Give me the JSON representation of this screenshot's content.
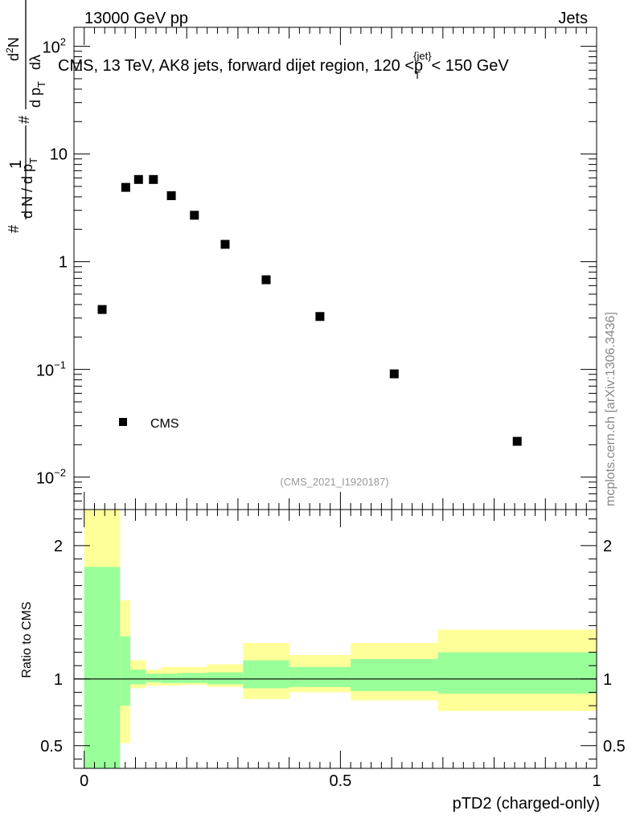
{
  "header": {
    "left": "13000 GeV pp",
    "right": "Jets"
  },
  "side_label": "mcplots.cern.ch [arXiv:1306.3436]",
  "watermark": "(CMS_2021_I1920187)",
  "chart_data": [
    {
      "type": "scatter",
      "panel": "main",
      "title_parts": {
        "main": "CMS, 13 TeV, AK8 jets, forward dijet region, 120 <",
        "pt_symbol": "p",
        "pt_sub": "T",
        "pt_sup": "{jet}",
        "suffix": "< 150 GeV"
      },
      "ylabel_parts": {
        "hash": "#",
        "one": "1",
        "dN": "d N / d p",
        "T": "T",
        "hash2": "#",
        "d2N": "d",
        "sup2": "2",
        "N": "N",
        "dpT": "d p",
        "dlambda": "dλ"
      },
      "yscale": "log",
      "ylim": [
        0.005,
        150
      ],
      "xlim": [
        -0.02,
        1.0
      ],
      "y_ticks": [
        {
          "value": 0.01,
          "base": "10",
          "exp": "−2"
        },
        {
          "value": 0.1,
          "base": "10",
          "exp": "−1"
        },
        {
          "value": 1,
          "label": "1"
        },
        {
          "value": 10,
          "label": "10"
        },
        {
          "value": 100,
          "base": "10",
          "exp": "2"
        }
      ],
      "legend": {
        "label": "CMS",
        "position": "lower-left"
      },
      "series": [
        {
          "name": "CMS",
          "marker": "square",
          "color": "#000000",
          "points": [
            {
              "x": 0.035,
              "y": 0.36
            },
            {
              "x": 0.081,
              "y": 4.9
            },
            {
              "x": 0.106,
              "y": 5.8
            },
            {
              "x": 0.135,
              "y": 5.8
            },
            {
              "x": 0.17,
              "y": 4.1
            },
            {
              "x": 0.215,
              "y": 2.7
            },
            {
              "x": 0.275,
              "y": 1.45
            },
            {
              "x": 0.355,
              "y": 0.68
            },
            {
              "x": 0.46,
              "y": 0.31
            },
            {
              "x": 0.605,
              "y": 0.091
            },
            {
              "x": 0.845,
              "y": 0.0215
            }
          ]
        }
      ]
    },
    {
      "type": "area",
      "panel": "ratio",
      "ylabel": "Ratio to CMS",
      "xlabel": "pTD2 (charged-only)",
      "xlim": [
        -0.02,
        1.0
      ],
      "ylim": [
        0.33,
        2.27
      ],
      "x_ticks": [
        {
          "value": 0,
          "label": "0"
        },
        {
          "value": 0.5,
          "label": "0.5"
        },
        {
          "value": 1,
          "label": "1"
        }
      ],
      "y_ticks": [
        {
          "value": 0.5,
          "label": "0.5"
        },
        {
          "value": 1,
          "label": "1"
        },
        {
          "value": 2,
          "label": "2"
        }
      ],
      "reference_line": 1,
      "colors": {
        "outer": "#ffff99",
        "inner": "#99ff99",
        "line": "#000000"
      },
      "bands": [
        {
          "x0": 0.0,
          "x1": 0.07,
          "outer": [
            0.0,
            2.5
          ],
          "inner": [
            0.0,
            1.84
          ]
        },
        {
          "x0": 0.07,
          "x1": 0.09,
          "outer": [
            0.52,
            1.59
          ],
          "inner": [
            0.8,
            1.32
          ]
        },
        {
          "x0": 0.09,
          "x1": 0.12,
          "outer": [
            0.93,
            1.14
          ],
          "inner": [
            0.96,
            1.07
          ]
        },
        {
          "x0": 0.12,
          "x1": 0.15,
          "outer": [
            0.95,
            1.07
          ],
          "inner": [
            0.975,
            1.04
          ]
        },
        {
          "x0": 0.15,
          "x1": 0.19,
          "outer": [
            0.95,
            1.09
          ],
          "inner": [
            0.97,
            1.04
          ]
        },
        {
          "x0": 0.19,
          "x1": 0.24,
          "outer": [
            0.955,
            1.09
          ],
          "inner": [
            0.97,
            1.045
          ]
        },
        {
          "x0": 0.24,
          "x1": 0.31,
          "outer": [
            0.94,
            1.11
          ],
          "inner": [
            0.96,
            1.05
          ]
        },
        {
          "x0": 0.31,
          "x1": 0.4,
          "outer": [
            0.85,
            1.27
          ],
          "inner": [
            0.93,
            1.14
          ]
        },
        {
          "x0": 0.4,
          "x1": 0.52,
          "outer": [
            0.9,
            1.18
          ],
          "inner": [
            0.94,
            1.09
          ]
        },
        {
          "x0": 0.52,
          "x1": 0.69,
          "outer": [
            0.84,
            1.27
          ],
          "inner": [
            0.91,
            1.15
          ]
        },
        {
          "x0": 0.69,
          "x1": 1.0,
          "outer": [
            0.76,
            1.37
          ],
          "inner": [
            0.89,
            1.2
          ]
        }
      ]
    }
  ]
}
